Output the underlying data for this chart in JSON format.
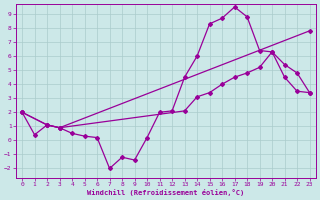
{
  "xlabel": "Windchill (Refroidissement éolien,°C)",
  "xlim": [
    -0.5,
    23.5
  ],
  "ylim": [
    -2.7,
    9.7
  ],
  "xticks": [
    0,
    1,
    2,
    3,
    4,
    5,
    6,
    7,
    8,
    9,
    10,
    11,
    12,
    13,
    14,
    15,
    16,
    17,
    18,
    19,
    20,
    21,
    22,
    23
  ],
  "yticks": [
    -2,
    -1,
    0,
    1,
    2,
    3,
    4,
    5,
    6,
    7,
    8,
    9
  ],
  "bg_color": "#cce8e8",
  "line_color": "#990099",
  "grid_color": "#aacccc",
  "line1_x": [
    0,
    1,
    2,
    3,
    4,
    5,
    6,
    7,
    8,
    9,
    10,
    11,
    12,
    13,
    14,
    15,
    16,
    17,
    18,
    19,
    20,
    21,
    22,
    23
  ],
  "line1_y": [
    2.0,
    0.4,
    1.1,
    0.9,
    0.5,
    0.3,
    0.2,
    -2.0,
    -1.2,
    -1.4,
    0.2,
    2.0,
    2.1,
    4.5,
    6.0,
    8.3,
    8.7,
    9.5,
    8.8,
    6.4,
    6.3,
    4.5,
    3.5,
    3.4
  ],
  "line2_x": [
    0,
    2,
    3,
    23
  ],
  "line2_y": [
    2.0,
    1.1,
    0.9,
    7.8
  ],
  "line3_x": [
    0,
    2,
    3,
    13,
    14,
    15,
    16,
    17,
    18,
    19,
    20,
    21,
    22,
    23
  ],
  "line3_y": [
    2.0,
    1.1,
    0.9,
    2.1,
    3.1,
    3.4,
    4.0,
    4.5,
    4.8,
    5.2,
    6.3,
    5.4,
    4.8,
    3.4
  ],
  "figsize": [
    3.2,
    2.0
  ],
  "dpi": 100
}
